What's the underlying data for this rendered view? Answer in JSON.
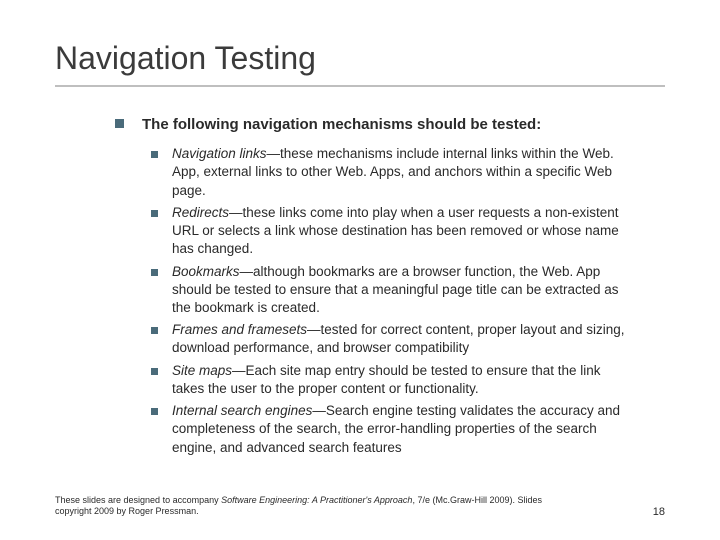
{
  "colors": {
    "bullet": "#4a6b7a",
    "rule": "#bfbfbf",
    "text": "#2a2a2a",
    "title": "#3b3b3b",
    "background": "#ffffff"
  },
  "typography": {
    "title_fontsize": 32,
    "lead_fontsize": 15,
    "body_fontsize": 13.5,
    "footer_fontsize": 9,
    "pagenum_fontsize": 11,
    "font_family": "Arial"
  },
  "title": "Navigation Testing",
  "lead": "The following navigation mechanisms should be tested:",
  "items": [
    {
      "term": "Navigation links",
      "desc": "—these mechanisms include internal links within the Web. App, external links to other Web. Apps, and anchors within a specific Web page."
    },
    {
      "term": "Redirects",
      "desc": "—these links come into play when a user requests a non-existent URL or selects a link whose destination has been removed or whose name has changed."
    },
    {
      "term": "Bookmarks",
      "desc": "—although bookmarks are a browser function, the Web. App should be tested to ensure that a meaningful page title can be extracted as the bookmark is created."
    },
    {
      "term": "Frames and framesets",
      "desc": "—tested for correct content, proper layout and sizing, download performance, and browser compatibility"
    },
    {
      "term": "Site maps",
      "desc": "—Each site map entry should be tested to ensure that the link takes the user to the proper content or functionality."
    },
    {
      "term": "Internal search engines",
      "desc": "—Search engine testing validates the accuracy and completeness of the search, the error-handling properties of the search engine, and advanced search features"
    }
  ],
  "footer": {
    "prefix": "These slides are designed to accompany ",
    "book": "Software Engineering: A Practitioner's Approach",
    "suffix": ", 7/e (Mc.Graw-Hill 2009). Slides copyright 2009 by Roger Pressman."
  },
  "page_number": "18"
}
